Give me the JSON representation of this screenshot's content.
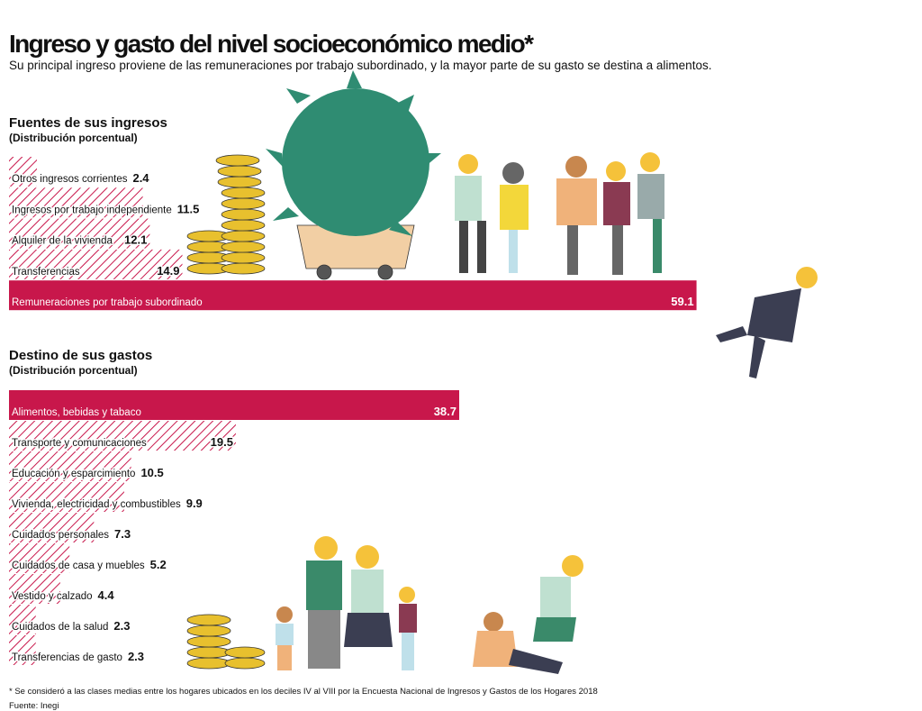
{
  "header": {
    "title": "Ingreso y gasto del nivel socioeconómico medio*",
    "subtitle": "Su principal ingreso proviene de las remuneraciones por trabajo subordinado, y la mayor parte de su gasto se destina a alimentos."
  },
  "chart_data": [
    {
      "type": "bar",
      "orientation": "horizontal",
      "title": "Fuentes de sus ingresos",
      "subtitle": "(Distribución porcentual)",
      "categories": [
        "Otros ingresos corrientes",
        "Ingresos por trabajo independiente",
        "Alquiler de la vivienda",
        "Transferencias",
        "Remuneraciones por trabajo subordinado"
      ],
      "values": [
        2.4,
        11.5,
        12.1,
        14.9,
        59.1
      ],
      "color": "#c8174b"
    },
    {
      "type": "bar",
      "orientation": "horizontal",
      "title": "Destino de sus gastos",
      "subtitle": "(Distribución porcentual)",
      "categories": [
        "Alimentos, bebidas y tabaco",
        "Transporte y comunicaciones",
        "Educación y esparcimiento",
        "Vivienda, electricidad y combustibles",
        "Cuidados personales",
        "Cuidados de casa y muebles",
        "Vestido y calzado",
        "Cuidados de la salud",
        "Transferencias de gasto"
      ],
      "values": [
        38.7,
        19.5,
        10.5,
        9.9,
        7.3,
        5.2,
        4.4,
        2.3,
        2.3
      ],
      "color": "#c8174b"
    }
  ],
  "footer": {
    "note": "* Se consideró a las clases medias entre los hogares ubicados en los deciles IV al VIII por la Encuesta Nacional de Ingresos y Gastos de los Hogares 2018",
    "source": "Fuente: Inegi"
  }
}
